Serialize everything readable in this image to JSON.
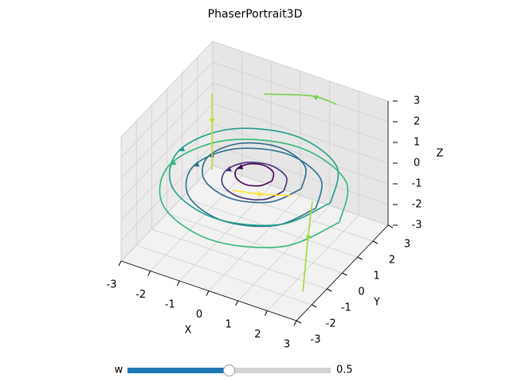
{
  "chart_data": {
    "type": "streamplot3d",
    "title": "PhaserPortrait3D",
    "xlabel": "X",
    "ylabel": "Y",
    "zlabel": "Z",
    "xlim": [
      -3,
      3
    ],
    "ylim": [
      -3,
      3
    ],
    "zlim": [
      -3,
      3
    ],
    "xticks": [
      -3,
      -2,
      -1,
      0,
      1,
      2,
      3
    ],
    "yticks": [
      -3,
      -2,
      -1,
      0,
      1,
      2,
      3
    ],
    "zticks": [
      -3,
      -2,
      -1,
      0,
      1,
      2,
      3
    ],
    "grid": true,
    "streamlines": [
      {
        "color": "#440154",
        "x": [
          0.6,
          0.42,
          0,
          -0.42,
          -0.6,
          -0.42,
          0,
          0.42,
          0.6
        ],
        "y": [
          0,
          0.42,
          0.6,
          0.42,
          0,
          -0.42,
          -0.6,
          -0.42,
          0
        ],
        "z": [
          0.3,
          0.3,
          0.3,
          0.3,
          0.3,
          0.3,
          0.3,
          0.3,
          0.3
        ]
      },
      {
        "color": "#46327e",
        "x": [
          1,
          0.71,
          0,
          -0.71,
          -1,
          -0.71,
          0,
          0.71,
          1
        ],
        "y": [
          0,
          0.71,
          1,
          0.71,
          0,
          -0.71,
          -1,
          -0.71,
          0
        ],
        "z": [
          0,
          0,
          0,
          0,
          0,
          0,
          0,
          0,
          0
        ]
      },
      {
        "color": "#31688e",
        "x": [
          1.6,
          1.13,
          0,
          -1.13,
          -1.6,
          -1.13,
          0,
          1.13,
          1.6
        ],
        "y": [
          0,
          1.13,
          1.6,
          1.13,
          0,
          -1.13,
          -1.6,
          -1.13,
          0
        ],
        "z": [
          0.4,
          0.4,
          0.4,
          0.4,
          0.4,
          0.4,
          0.4,
          0.4,
          0.4
        ]
      },
      {
        "color": "#2c728e",
        "x": [
          2.1,
          1.48,
          0,
          -1.48,
          -2.1,
          -1.48,
          0,
          1.48,
          2.1
        ],
        "y": [
          0,
          1.48,
          2.1,
          1.48,
          0,
          -1.48,
          -2.1,
          -1.48,
          0
        ],
        "z": [
          -0.3,
          -0.3,
          -0.3,
          -0.3,
          -0.3,
          -0.3,
          -0.3,
          -0.3,
          -0.3
        ]
      },
      {
        "color": "#1f9e89",
        "x": [
          2.6,
          1.84,
          0,
          -1.84,
          -2.6,
          -1.84,
          0,
          1.84,
          2.6
        ],
        "y": [
          0,
          1.84,
          2.6,
          1.84,
          0,
          -1.84,
          -2.6,
          -1.84,
          0
        ],
        "z": [
          0.2,
          0.2,
          0.2,
          0.2,
          0.2,
          0.2,
          0.2,
          0.2,
          0.2
        ]
      },
      {
        "color": "#35b779",
        "x": [
          2.9,
          2.05,
          0,
          -2.05,
          -2.9,
          -2.05,
          0,
          2.05,
          2.9
        ],
        "y": [
          0,
          2.05,
          2.9,
          2.05,
          0,
          -2.05,
          -2.9,
          -2.05,
          0
        ],
        "z": [
          -0.6,
          -0.6,
          -0.6,
          -0.6,
          -0.6,
          -0.6,
          -0.6,
          -0.6,
          -0.6
        ]
      },
      {
        "color": "#c2df23",
        "x": [
          -2.5,
          -2.5,
          -2.4
        ],
        "y": [
          2,
          2,
          1.8
        ],
        "z": [
          1.5,
          0,
          -2
        ]
      },
      {
        "color": "#a2da37",
        "x": [
          2.5,
          2.6,
          2.7
        ],
        "y": [
          -1,
          -1.5,
          -2
        ],
        "z": [
          1,
          -0.5,
          -2.5
        ]
      },
      {
        "color": "#fde725",
        "x": [
          -0.5,
          0.3,
          1
        ],
        "y": [
          -0.5,
          0,
          0.5
        ],
        "z": [
          -0.3,
          -0.5,
          -0.6
        ]
      },
      {
        "color": "#7ad151",
        "x": [
          1.5,
          0.5,
          -1
        ],
        "y": [
          2.5,
          2.8,
          2.5
        ],
        "z": [
          2.5,
          2.2,
          1.8
        ]
      }
    ]
  },
  "slider": {
    "label": "w",
    "value": 0.5,
    "value_label": "0.5",
    "lim": [
      0,
      1
    ]
  }
}
